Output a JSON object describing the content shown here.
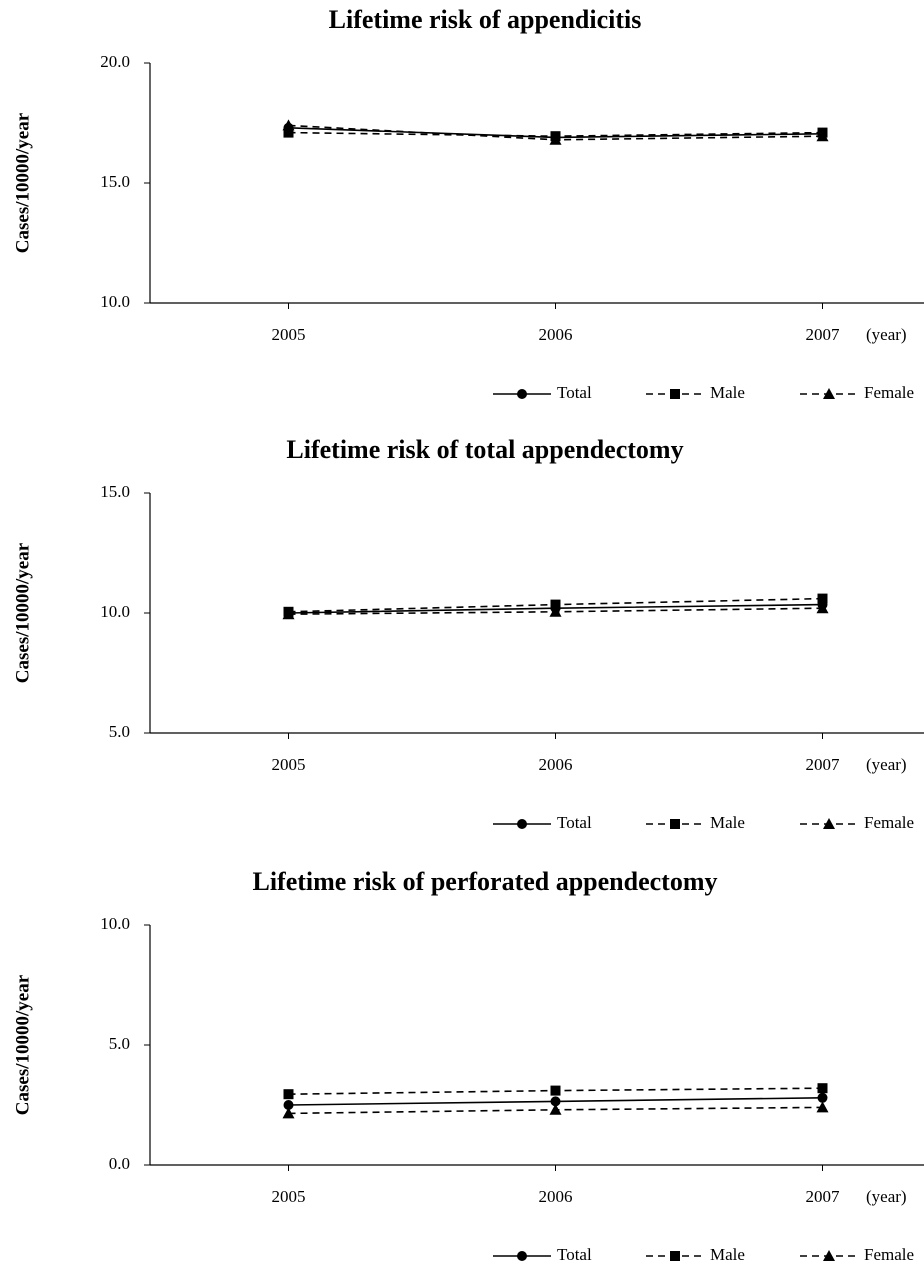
{
  "chart_data": [
    {
      "type": "line",
      "title": "Lifetime risk of appendicitis",
      "y_label": "Cases/10000/year",
      "x_label": "(year)",
      "categories": [
        "2005",
        "2006",
        "2007"
      ],
      "ylim": [
        10,
        20
      ],
      "yticks": [
        {
          "value": 10,
          "label": "10.0"
        },
        {
          "value": 15,
          "label": "15.0"
        },
        {
          "value": 20,
          "label": "20.0"
        }
      ],
      "series": [
        {
          "name": "Total",
          "color": "#000000",
          "style": "solid",
          "marker": "circle",
          "values": [
            17.3,
            16.9,
            17.05
          ]
        },
        {
          "name": "Male",
          "color": "#000000",
          "style": "dashed",
          "marker": "square",
          "values": [
            17.1,
            16.95,
            17.1
          ]
        },
        {
          "name": "Female",
          "color": "#000000",
          "style": "dashed",
          "marker": "triangle",
          "values": [
            17.4,
            16.8,
            16.95
          ]
        }
      ]
    },
    {
      "type": "line",
      "title": "Lifetime risk of total appendectomy",
      "y_label": "Cases/10000/year",
      "x_label": "(year)",
      "categories": [
        "2005",
        "2006",
        "2007"
      ],
      "ylim": [
        5,
        15
      ],
      "yticks": [
        {
          "value": 5,
          "label": "5.0"
        },
        {
          "value": 10,
          "label": "10.0"
        },
        {
          "value": 15,
          "label": "15.0"
        }
      ],
      "series": [
        {
          "name": "Total",
          "color": "#000000",
          "style": "solid",
          "marker": "circle",
          "values": [
            10.0,
            10.2,
            10.35
          ]
        },
        {
          "name": "Male",
          "color": "#000000",
          "style": "dashed",
          "marker": "square",
          "values": [
            10.05,
            10.35,
            10.6
          ]
        },
        {
          "name": "Female",
          "color": "#000000",
          "style": "dashed",
          "marker": "triangle",
          "values": [
            9.95,
            10.05,
            10.2
          ]
        }
      ]
    },
    {
      "type": "line",
      "title": "Lifetime risk of perforated appendectomy",
      "y_label": "Cases/10000/year",
      "x_label": "(year)",
      "categories": [
        "2005",
        "2006",
        "2007"
      ],
      "ylim": [
        0,
        10
      ],
      "yticks": [
        {
          "value": 0,
          "label": "0.0"
        },
        {
          "value": 5,
          "label": "5.0"
        },
        {
          "value": 10,
          "label": "10.0"
        }
      ],
      "series": [
        {
          "name": "Total",
          "color": "#000000",
          "style": "solid",
          "marker": "circle",
          "values": [
            2.5,
            2.65,
            2.8
          ]
        },
        {
          "name": "Male",
          "color": "#000000",
          "style": "dashed",
          "marker": "square",
          "values": [
            2.95,
            3.1,
            3.2
          ]
        },
        {
          "name": "Female",
          "color": "#000000",
          "style": "dashed",
          "marker": "triangle",
          "values": [
            2.15,
            2.3,
            2.4
          ]
        }
      ]
    }
  ]
}
